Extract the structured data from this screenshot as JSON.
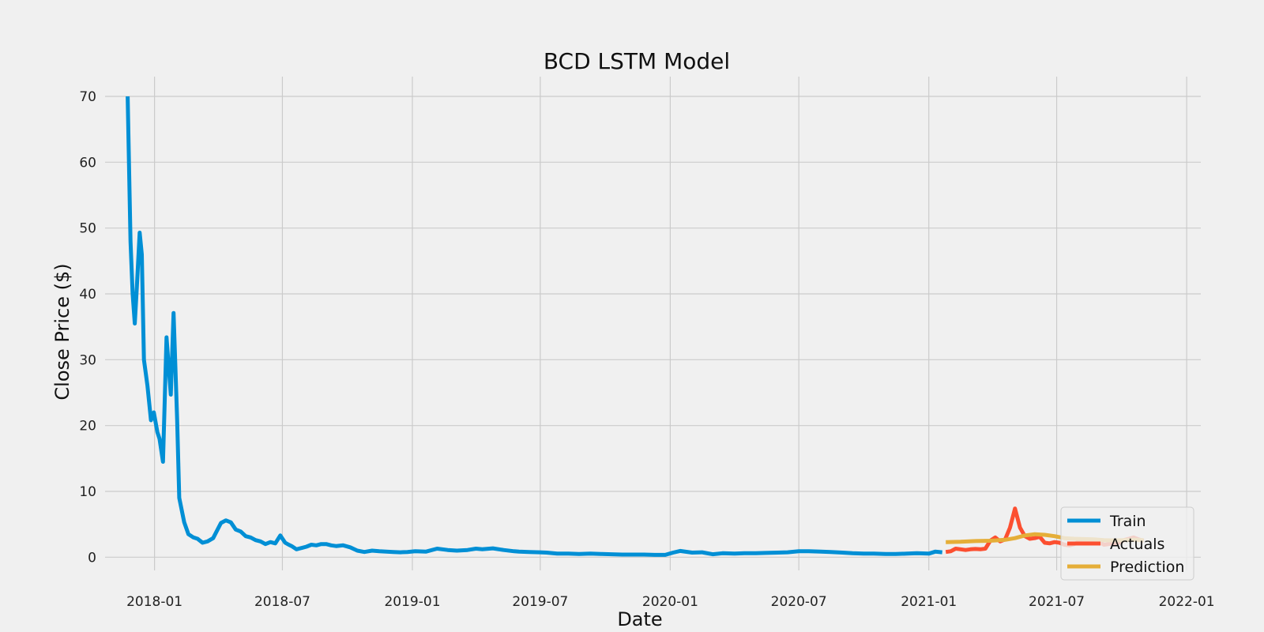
{
  "chart_data": {
    "type": "line",
    "title": "BCD LSTM Model",
    "xlabel": "Date",
    "ylabel": "Close Price ($)",
    "x_tick_labels": [
      "2018-01",
      "2018-07",
      "2019-01",
      "2019-07",
      "2020-01",
      "2020-07",
      "2021-01",
      "2021-07",
      "2022-01"
    ],
    "y_ticks": [
      0,
      10,
      20,
      30,
      40,
      50,
      60,
      70
    ],
    "xlim": [
      "2017-10-23",
      "2022-01-21"
    ],
    "ylim": [
      -2,
      73
    ],
    "grid": true,
    "legend_position": "bottom-right",
    "colors": {
      "Train": "#008fd5",
      "Actuals": "#fc4f30",
      "Prediction": "#e5ae38"
    },
    "series": [
      {
        "name": "Train",
        "x": [
          "2017-11-24",
          "2017-11-28",
          "2017-12-01",
          "2017-12-04",
          "2017-12-07",
          "2017-12-11",
          "2017-12-14",
          "2017-12-17",
          "2017-12-22",
          "2017-12-27",
          "2017-12-31",
          "2018-01-05",
          "2018-01-08",
          "2018-01-13",
          "2018-01-18",
          "2018-01-21",
          "2018-01-24",
          "2018-01-28",
          "2018-02-02",
          "2018-02-05",
          "2018-02-12",
          "2018-02-18",
          "2018-02-25",
          "2018-03-03",
          "2018-03-10",
          "2018-03-17",
          "2018-03-25",
          "2018-04-05",
          "2018-04-12",
          "2018-04-19",
          "2018-04-26",
          "2018-05-03",
          "2018-05-10",
          "2018-05-17",
          "2018-05-24",
          "2018-05-31",
          "2018-06-07",
          "2018-06-14",
          "2018-06-21",
          "2018-06-28",
          "2018-07-05",
          "2018-07-10",
          "2018-07-14",
          "2018-07-21",
          "2018-07-28",
          "2018-08-04",
          "2018-08-11",
          "2018-08-18",
          "2018-08-25",
          "2018-09-01",
          "2018-09-08",
          "2018-09-15",
          "2018-09-25",
          "2018-10-05",
          "2018-10-15",
          "2018-10-25",
          "2018-11-05",
          "2018-11-15",
          "2018-11-25",
          "2018-12-05",
          "2018-12-15",
          "2018-12-25",
          "2019-01-05",
          "2019-01-20",
          "2019-02-05",
          "2019-02-20",
          "2019-03-05",
          "2019-03-20",
          "2019-04-01",
          "2019-04-10",
          "2019-04-25",
          "2019-05-10",
          "2019-05-25",
          "2019-06-01",
          "2019-06-15",
          "2019-06-30",
          "2019-07-10",
          "2019-07-25",
          "2019-08-10",
          "2019-08-25",
          "2019-09-10",
          "2019-09-25",
          "2019-10-10",
          "2019-10-25",
          "2019-11-10",
          "2019-11-25",
          "2019-12-10",
          "2019-12-25",
          "2020-01-05",
          "2020-01-15",
          "2020-02-01",
          "2020-02-15",
          "2020-03-01",
          "2020-03-15",
          "2020-04-01",
          "2020-04-15",
          "2020-05-01",
          "2020-05-15",
          "2020-06-01",
          "2020-06-15",
          "2020-07-01",
          "2020-07-15",
          "2020-08-01",
          "2020-08-15",
          "2020-09-01",
          "2020-09-15",
          "2020-10-01",
          "2020-10-15",
          "2020-11-01",
          "2020-11-15",
          "2020-12-01",
          "2020-12-15",
          "2021-01-01",
          "2021-01-10",
          "2021-01-20"
        ],
        "y": [
          70,
          48,
          40,
          35.5,
          41,
          49.3,
          46,
          30,
          26,
          20.8,
          22,
          19,
          18,
          14.5,
          33.4,
          29,
          24.7,
          37.1,
          21,
          9,
          5.3,
          3.5,
          3,
          2.8,
          2.2,
          2.4,
          2.9,
          5.2,
          5.6,
          5.3,
          4.2,
          3.9,
          3.2,
          3,
          2.6,
          2.4,
          2,
          2.3,
          2.1,
          3.3,
          2.2,
          1.9,
          1.7,
          1.2,
          1.4,
          1.6,
          1.9,
          1.8,
          2,
          2,
          1.8,
          1.7,
          1.8,
          1.5,
          1,
          0.8,
          1,
          0.9,
          0.85,
          0.8,
          0.75,
          0.8,
          0.9,
          0.85,
          1.3,
          1.1,
          1,
          1.1,
          1.3,
          1.2,
          1.35,
          1.1,
          0.9,
          0.85,
          0.8,
          0.75,
          0.7,
          0.55,
          0.55,
          0.5,
          0.55,
          0.5,
          0.45,
          0.4,
          0.4,
          0.4,
          0.35,
          0.35,
          0.7,
          0.95,
          0.7,
          0.75,
          0.45,
          0.6,
          0.55,
          0.6,
          0.6,
          0.65,
          0.7,
          0.75,
          0.9,
          0.9,
          0.85,
          0.8,
          0.7,
          0.6,
          0.55,
          0.55,
          0.5,
          0.5,
          0.55,
          0.6,
          0.55,
          0.85,
          0.75
        ]
      },
      {
        "name": "Actuals",
        "x": [
          "2021-01-25",
          "2021-02-01",
          "2021-02-08",
          "2021-02-15",
          "2021-02-22",
          "2021-03-01",
          "2021-03-08",
          "2021-03-15",
          "2021-03-22",
          "2021-03-29",
          "2021-04-05",
          "2021-04-12",
          "2021-04-19",
          "2021-04-26",
          "2021-05-03",
          "2021-05-10",
          "2021-05-17",
          "2021-05-24",
          "2021-05-31",
          "2021-06-07",
          "2021-06-14",
          "2021-06-21",
          "2021-06-28",
          "2021-07-05",
          "2021-07-12",
          "2021-07-19",
          "2021-07-26",
          "2021-08-02",
          "2021-08-09",
          "2021-08-16",
          "2021-08-23",
          "2021-08-30",
          "2021-09-06",
          "2021-09-13",
          "2021-09-20",
          "2021-09-27",
          "2021-10-04",
          "2021-10-11",
          "2021-10-18",
          "2021-10-25",
          "2021-11-01"
        ],
        "y": [
          0.8,
          0.9,
          1.3,
          1.2,
          1.1,
          1.2,
          1.25,
          1.2,
          1.3,
          2.5,
          3,
          2.4,
          2.7,
          4.5,
          7.4,
          4.5,
          3.2,
          2.8,
          2.9,
          3.1,
          2.2,
          2.1,
          2.3,
          2.2,
          1.9,
          1.8,
          2,
          2.4,
          2.6,
          2.5,
          2.6,
          2.3,
          1.9,
          2,
          2.1,
          2.2,
          2.6,
          2.8,
          3,
          2.7,
          2.5
        ]
      },
      {
        "name": "Prediction",
        "x": [
          "2021-01-25",
          "2021-02-15",
          "2021-03-08",
          "2021-03-29",
          "2021-04-19",
          "2021-05-03",
          "2021-05-17",
          "2021-05-31",
          "2021-06-14",
          "2021-06-28",
          "2021-07-12",
          "2021-07-26",
          "2021-08-09",
          "2021-08-23",
          "2021-09-06",
          "2021-09-20",
          "2021-10-04",
          "2021-10-18",
          "2021-11-01"
        ],
        "y": [
          2.3,
          2.35,
          2.45,
          2.5,
          2.65,
          2.9,
          3.3,
          3.5,
          3.4,
          3.2,
          2.9,
          2.8,
          2.75,
          2.7,
          2.6,
          2.55,
          2.6,
          2.65,
          2.6
        ]
      }
    ]
  }
}
